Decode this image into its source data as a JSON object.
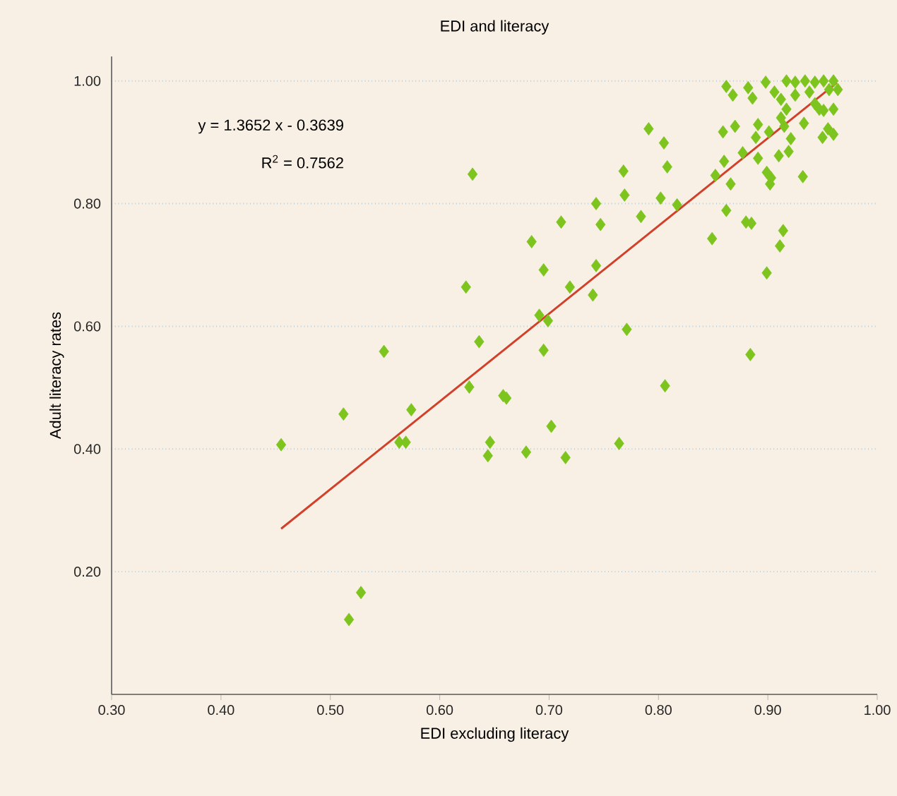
{
  "chart_data": {
    "type": "scatter",
    "title": "EDI and literacy",
    "xlabel": "EDI excluding literacy",
    "ylabel": "Adult literacy rates",
    "annotations": [
      "y = 1.3652 x - 0.3639",
      "R$^{2}$ = 0.7562"
    ],
    "xlim": [
      0.3,
      1.0
    ],
    "ylim": [
      0,
      1.04
    ],
    "xticks": [
      {
        "value": 0.3,
        "label": "0.30"
      },
      {
        "value": 0.4,
        "label": "0.40"
      },
      {
        "value": 0.5,
        "label": "0.50"
      },
      {
        "value": 0.6,
        "label": "0.60"
      },
      {
        "value": 0.7,
        "label": "0.70"
      },
      {
        "value": 0.8,
        "label": "0.80"
      },
      {
        "value": 0.9,
        "label": "0.90"
      },
      {
        "value": 1.0,
        "label": "1.00"
      }
    ],
    "yticks": [
      {
        "value": 0.2,
        "label": "0.20"
      },
      {
        "value": 0.4,
        "label": "0.40"
      },
      {
        "value": 0.6,
        "label": "0.60"
      },
      {
        "value": 0.8,
        "label": "0.80"
      },
      {
        "value": 1.0,
        "label": "1.00"
      }
    ],
    "grid": "y",
    "marker": "diamond",
    "series": [
      {
        "type": "scatter",
        "color": "#7dc41f",
        "x": [
          0.455,
          0.512,
          0.549,
          0.574,
          0.563,
          0.569,
          0.528,
          0.517,
          0.63,
          0.743,
          0.711,
          0.747,
          0.684,
          0.695,
          0.743,
          0.719,
          0.74,
          0.624,
          0.691,
          0.699,
          0.636,
          0.695,
          0.627,
          0.658,
          0.661,
          0.646,
          0.644,
          0.702,
          0.679,
          0.715,
          0.791,
          0.805,
          0.768,
          0.808,
          0.769,
          0.802,
          0.817,
          0.784,
          0.771,
          0.884,
          0.764,
          0.806,
          0.849,
          0.862,
          0.88,
          0.885,
          0.914,
          0.911,
          0.899,
          0.852,
          0.86,
          0.866,
          0.877,
          0.891,
          0.899,
          0.902,
          0.903,
          0.932,
          0.91,
          0.919,
          0.859,
          0.87,
          0.891,
          0.889,
          0.901,
          0.915,
          0.921,
          0.933,
          0.95,
          0.955,
          0.96,
          0.947,
          0.912,
          0.917,
          0.862,
          0.868,
          0.882,
          0.886,
          0.898,
          0.906,
          0.912,
          0.917,
          0.925,
          0.934,
          0.943,
          0.951,
          0.96,
          0.964,
          0.925,
          0.938,
          0.956,
          0.943,
          0.951,
          0.96
        ],
        "values": [
          0.407,
          0.457,
          0.559,
          0.464,
          0.411,
          0.411,
          0.166,
          0.122,
          0.848,
          0.8,
          0.77,
          0.766,
          0.738,
          0.692,
          0.699,
          0.664,
          0.651,
          0.664,
          0.618,
          0.609,
          0.575,
          0.561,
          0.501,
          0.487,
          0.483,
          0.411,
          0.389,
          0.437,
          0.395,
          0.386,
          0.922,
          0.899,
          0.853,
          0.86,
          0.814,
          0.809,
          0.798,
          0.779,
          0.595,
          0.554,
          0.409,
          0.503,
          0.743,
          0.789,
          0.77,
          0.768,
          0.756,
          0.731,
          0.687,
          0.846,
          0.869,
          0.832,
          0.883,
          0.874,
          0.851,
          0.832,
          0.842,
          0.844,
          0.878,
          0.885,
          0.917,
          0.926,
          0.929,
          0.908,
          0.917,
          0.926,
          0.906,
          0.931,
          0.908,
          0.922,
          0.954,
          0.954,
          0.94,
          0.954,
          0.991,
          0.977,
          0.989,
          0.972,
          0.998,
          0.982,
          0.97,
          1.0,
          0.998,
          1.0,
          0.998,
          1.0,
          1.0,
          0.986,
          0.977,
          0.982,
          0.986,
          0.963,
          0.952,
          0.913
        ]
      },
      {
        "type": "line",
        "color": "#d0402a",
        "marker": "none",
        "x": [
          0.455,
          0.963
        ],
        "values": [
          0.27,
          0.997
        ]
      }
    ]
  }
}
